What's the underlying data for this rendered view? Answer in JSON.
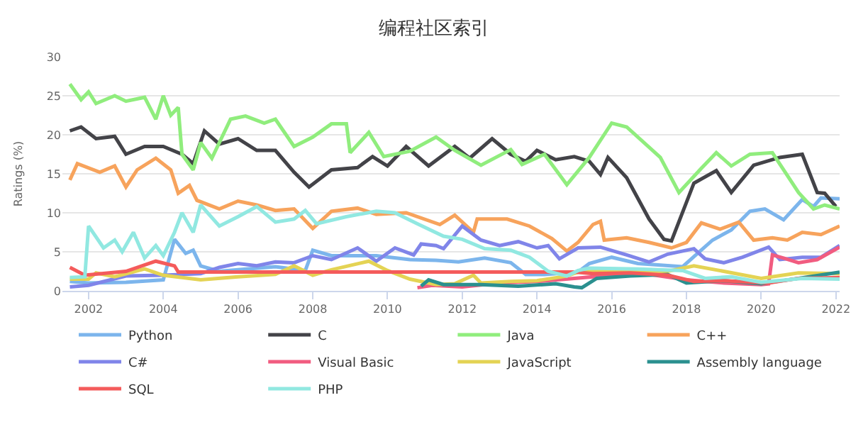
{
  "chart_data": {
    "type": "line",
    "title": "编程社区索引",
    "ylabel": "Ratings (%)",
    "xlim": [
      2001.3,
      2022.1
    ],
    "xticks": [
      2002,
      2004,
      2006,
      2008,
      2010,
      2012,
      2014,
      2016,
      2018,
      2020,
      2022
    ],
    "ylim": [
      0,
      30
    ],
    "yticks": [
      0,
      5,
      10,
      15,
      20,
      25,
      30
    ],
    "grid": "y",
    "legend": "bottom",
    "marker": "none",
    "line_style": "solid",
    "series": [
      {
        "name": "Python",
        "color": "#7cb5ec",
        "x": [
          2001.5,
          2002,
          2003,
          2004,
          2004.3,
          2004.6,
          2004.8,
          2005,
          2005.5,
          2006,
          2007,
          2007.8,
          2008,
          2008.5,
          2009.7,
          2010.6,
          2011.3,
          2011.9,
          2012.6,
          2013.3,
          2013.7,
          2014.2,
          2015.1,
          2015.4,
          2016,
          2016.7,
          2017.9,
          2018.3,
          2018.7,
          2019.2,
          2019.7,
          2020.1,
          2020.6,
          2021.1,
          2021.4,
          2021.6,
          2022.1
        ],
        "values": [
          1.2,
          1.0,
          1.1,
          1.4,
          6.6,
          4.8,
          5.2,
          3.2,
          2.5,
          2.7,
          3.1,
          2.6,
          5.2,
          4.5,
          4.5,
          4.0,
          3.9,
          3.7,
          4.2,
          3.6,
          2.1,
          2.1,
          2.4,
          3.5,
          4.3,
          3.5,
          3.1,
          4.8,
          6.5,
          7.8,
          10.2,
          10.5,
          9.1,
          11.7,
          10.8,
          11.9,
          11.8
        ]
      },
      {
        "name": "C",
        "color": "#434348",
        "x": [
          2001.5,
          2001.8,
          2002.2,
          2002.7,
          2003,
          2003.5,
          2004,
          2004.5,
          2004.8,
          2005.1,
          2005.5,
          2006,
          2006.5,
          2007,
          2007.5,
          2007.9,
          2008.5,
          2009.2,
          2009.6,
          2010,
          2010.5,
          2011.1,
          2011.8,
          2012.2,
          2012.8,
          2013.3,
          2013.7,
          2014,
          2014.5,
          2015,
          2015.4,
          2015.7,
          2015.9,
          2016.4,
          2017,
          2017.4,
          2017.6,
          2018.2,
          2018.8,
          2019.2,
          2019.8,
          2020.5,
          2021.1,
          2021.5,
          2021.7,
          2022
        ],
        "values": [
          20.5,
          21,
          19.5,
          19.8,
          17.5,
          18.5,
          18.5,
          17.5,
          16.3,
          20.5,
          18.8,
          19.5,
          18,
          18,
          15.2,
          13.3,
          15.5,
          15.8,
          17.2,
          16,
          18.5,
          16,
          18.5,
          17,
          19.5,
          17.5,
          16.6,
          18,
          16.8,
          17.2,
          16.6,
          14.9,
          17.1,
          14.5,
          9.2,
          6.6,
          6.4,
          13.8,
          15.4,
          12.6,
          16.1,
          17.1,
          17.5,
          12.6,
          12.5,
          10.8
        ]
      },
      {
        "name": "Java",
        "color": "#90ed7d",
        "x": [
          2001.5,
          2001.8,
          2002,
          2002.2,
          2002.7,
          2003,
          2003.5,
          2003.8,
          2004,
          2004.2,
          2004.4,
          2004.5,
          2004.8,
          2005,
          2005.3,
          2005.8,
          2006.2,
          2006.7,
          2007,
          2007.5,
          2008,
          2008.5,
          2008.9,
          2009.0,
          2009.5,
          2009.9,
          2010.6,
          2011.3,
          2011.8,
          2012.5,
          2013.3,
          2013.6,
          2014.2,
          2014.8,
          2015.4,
          2016,
          2016.4,
          2017.3,
          2017.8,
          2018.4,
          2018.8,
          2019.2,
          2019.7,
          2020.3,
          2021,
          2021.4,
          2021.7,
          2022.1
        ],
        "values": [
          26.5,
          24.5,
          25.5,
          24,
          25,
          24.3,
          24.8,
          22,
          25,
          22.5,
          23.5,
          17.5,
          15.5,
          19,
          17,
          22,
          22.4,
          21.5,
          22,
          18.5,
          19.7,
          21.4,
          21.4,
          17.7,
          20.3,
          17.2,
          17.9,
          19.7,
          18,
          16.1,
          18.1,
          16.2,
          17.5,
          13.6,
          17.1,
          21.5,
          21,
          17.1,
          12.6,
          15.7,
          17.7,
          16,
          17.5,
          17.7,
          12.6,
          10.5,
          11,
          10.5
        ]
      },
      {
        "name": "C++",
        "color": "#f7a35c",
        "x": [
          2001.5,
          2001.7,
          2002.3,
          2002.7,
          2003,
          2003.3,
          2003.8,
          2004.2,
          2004.4,
          2004.7,
          2004.9,
          2005.5,
          2006,
          2006.5,
          2007,
          2007.5,
          2008,
          2008.5,
          2009.2,
          2009.7,
          2010.5,
          2011.4,
          2011.8,
          2012.3,
          2012.4,
          2013.2,
          2013.8,
          2014.4,
          2014.8,
          2015.1,
          2015.5,
          2015.7,
          2015.8,
          2016.4,
          2017,
          2017.6,
          2018,
          2018.4,
          2018.9,
          2019.4,
          2019.8,
          2020.3,
          2020.7,
          2021.1,
          2021.6,
          2022.1
        ],
        "values": [
          14.2,
          16.3,
          15.2,
          16,
          13.3,
          15.5,
          17,
          15.5,
          12.5,
          13.5,
          11.6,
          10.5,
          11.5,
          11,
          10.3,
          10.5,
          8,
          10.2,
          10.6,
          9.8,
          10,
          8.5,
          9.7,
          7.5,
          9.2,
          9.2,
          8.3,
          6.7,
          5.1,
          6.2,
          8.5,
          8.9,
          6.5,
          6.8,
          6.2,
          5.5,
          6.2,
          8.7,
          7.9,
          8.8,
          6.5,
          6.8,
          6.5,
          7.5,
          7.2,
          8.3
        ]
      },
      {
        "name": "C#",
        "color": "#8085e9",
        "x": [
          2001.5,
          2002,
          2003,
          2004,
          2005,
          2005.5,
          2006,
          2006.5,
          2007,
          2007.5,
          2008,
          2008.5,
          2009.2,
          2009.7,
          2010.2,
          2010.7,
          2010.9,
          2011.3,
          2011.5,
          2012,
          2012.5,
          2013,
          2013.5,
          2014,
          2014.3,
          2014.6,
          2015.1,
          2015.7,
          2016.4,
          2017,
          2017.5,
          2018.2,
          2018.5,
          2019,
          2019.5,
          2020.2,
          2020.5,
          2021.1,
          2021.6,
          2022.1
        ],
        "values": [
          0.5,
          0.7,
          1.9,
          2.0,
          2.2,
          3,
          3.5,
          3.2,
          3.7,
          3.6,
          4.5,
          4.0,
          5.5,
          3.8,
          5.5,
          4.6,
          6.0,
          5.8,
          5.4,
          8.3,
          6.5,
          5.8,
          6.3,
          5.5,
          5.8,
          4.1,
          5.5,
          5.6,
          4.6,
          3.7,
          4.7,
          5.4,
          4.1,
          3.6,
          4.3,
          5.6,
          4.0,
          4.3,
          4.3,
          5.8
        ]
      },
      {
        "name": "Visual Basic",
        "color": "#f15c80",
        "x": [
          2010.8,
          2011.2,
          2012,
          2013,
          2014,
          2015,
          2016,
          2017,
          2018,
          2019,
          2020,
          2020.2,
          2020.3,
          2020.6,
          2021,
          2021.5,
          2022.1
        ],
        "values": [
          0.4,
          0.7,
          0.5,
          1.0,
          1.2,
          1.6,
          2.0,
          2.1,
          1.4,
          1.0,
          0.8,
          0.9,
          4.6,
          4.2,
          3.6,
          4.0,
          5.6
        ]
      },
      {
        "name": "JavaScript",
        "color": "#e4d354",
        "x": [
          2001.5,
          2002,
          2002.2,
          2002.7,
          2003.5,
          2004,
          2004.5,
          2005,
          2006,
          2007,
          2007.5,
          2008,
          2008.5,
          2009.5,
          2010,
          2010.6,
          2011.3,
          2011.8,
          2012.3,
          2012.5,
          2013.3,
          2014,
          2014.8,
          2015.1,
          2015.5,
          2016.5,
          2017.5,
          2018.2,
          2019,
          2020,
          2021,
          2022.1
        ],
        "values": [
          1.5,
          1.5,
          2.3,
          1.8,
          2.8,
          2.0,
          1.7,
          1.4,
          1.8,
          2.1,
          3.2,
          2.0,
          2.7,
          3.8,
          2.6,
          1.5,
          0.8,
          0.9,
          2.0,
          1.0,
          1.2,
          1.3,
          1.9,
          2.4,
          2.5,
          2.6,
          2.5,
          3.2,
          2.5,
          1.6,
          2.3,
          2.2
        ]
      },
      {
        "name": "Assembly language",
        "color": "#2b908f",
        "x": [
          2010.9,
          2011.1,
          2011.5,
          2012.5,
          2013.5,
          2014.5,
          2015,
          2015.2,
          2015.6,
          2016.5,
          2017.5,
          2018,
          2019,
          2020,
          2021,
          2022.1
        ],
        "values": [
          0.6,
          1.4,
          0.8,
          0.8,
          0.6,
          0.9,
          0.5,
          0.4,
          1.6,
          1.9,
          2.1,
          1.0,
          1.3,
          0.9,
          1.6,
          2.4
        ]
      },
      {
        "name": "SQL",
        "color": "#f45b5b",
        "x": [
          2001.5,
          2001.9,
          2003,
          2003.8,
          2004.3,
          2004.4,
          2008,
          2012,
          2015,
          2015.5,
          2016.5,
          2017.5,
          2018.2,
          2019,
          2020.2,
          2021,
          2022.1
        ],
        "values": [
          3.0,
          2.0,
          2.5,
          3.8,
          3.2,
          2.4,
          2.4,
          2.4,
          2.4,
          2.2,
          2.3,
          2.0,
          1.2,
          1.3,
          1.0,
          1.6,
          1.7
        ]
      },
      {
        "name": "PHP",
        "color": "#91e8e1",
        "x": [
          2001.5,
          2001.9,
          2002.0,
          2002.4,
          2002.7,
          2002.9,
          2003.2,
          2003.5,
          2003.8,
          2004,
          2004.3,
          2004.5,
          2004.8,
          2005,
          2005.5,
          2006,
          2006.5,
          2007,
          2007.5,
          2007.8,
          2008.1,
          2008.9,
          2009.7,
          2010.2,
          2010.8,
          2011.5,
          2012,
          2012.6,
          2013.3,
          2013.8,
          2014.3,
          2014.8,
          2015.1,
          2015.4,
          2016.7,
          2017.9,
          2018.5,
          2019.2,
          2020,
          2021.1,
          2022.1
        ],
        "values": [
          1.7,
          1.8,
          8.3,
          5.5,
          6.5,
          5,
          7.5,
          4.2,
          5.8,
          4.5,
          7.5,
          10,
          7.5,
          11,
          8.3,
          9.5,
          10.8,
          8.8,
          9.2,
          10.3,
          8.6,
          9.5,
          10.2,
          10,
          8.6,
          7,
          6.6,
          5.4,
          5.2,
          4.3,
          2.5,
          1.9,
          2.6,
          2.9,
          2.8,
          2.6,
          1.6,
          1.8,
          1.1,
          1.6,
          1.5
        ]
      }
    ]
  }
}
